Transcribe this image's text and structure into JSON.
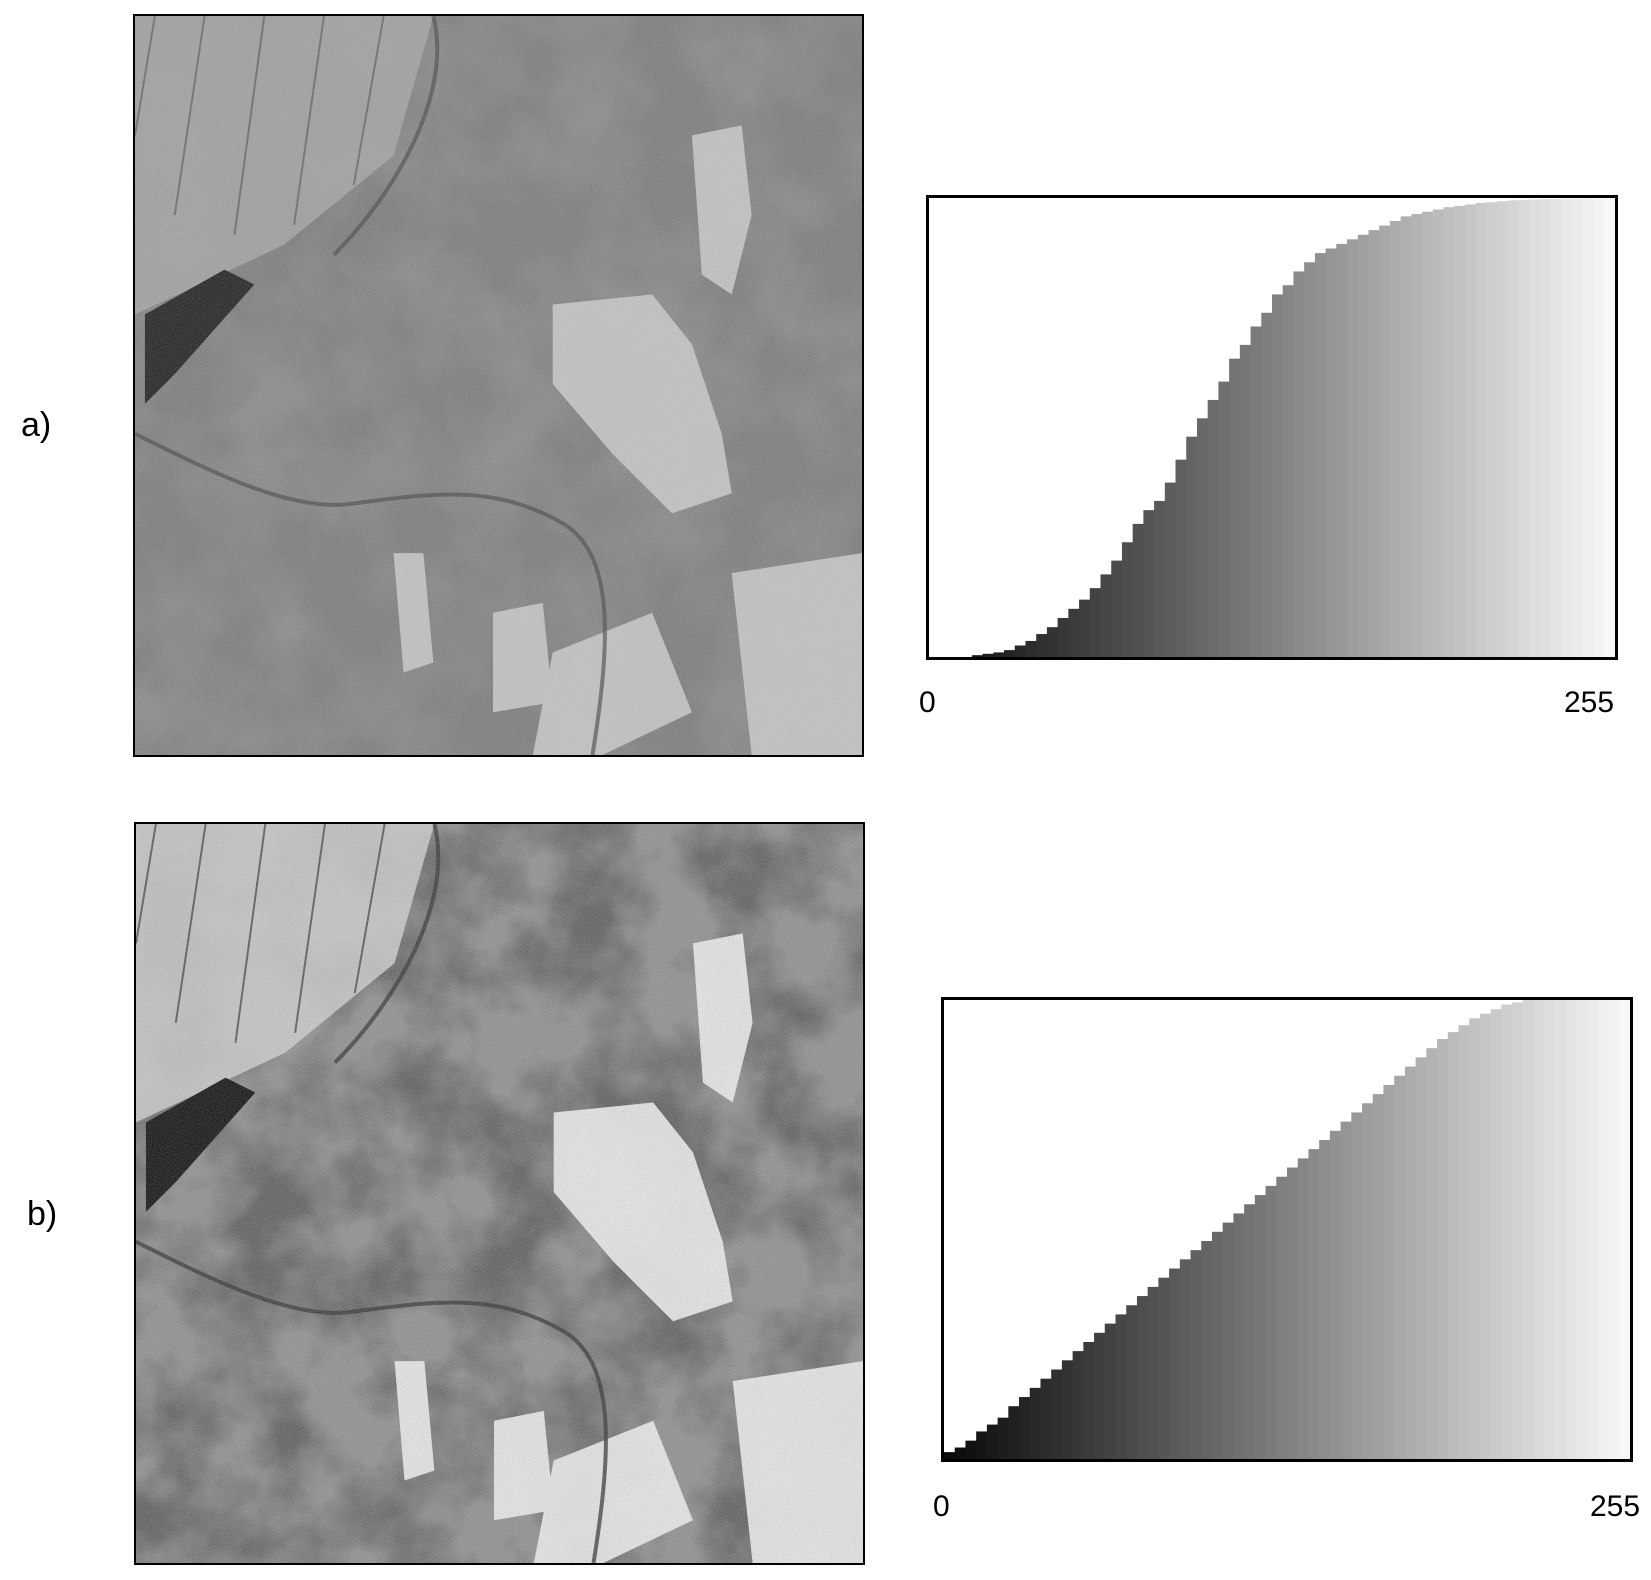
{
  "chart_data": [
    {
      "panel_label": "a)",
      "type": "bar",
      "xlim": [
        0,
        255
      ],
      "tick_labels": [
        "0",
        "255"
      ],
      "fill": "grayscale-gradient",
      "grid": false,
      "x": [
        0,
        4,
        8,
        12,
        16,
        20,
        24,
        28,
        32,
        36,
        40,
        44,
        48,
        52,
        56,
        60,
        64,
        68,
        72,
        76,
        80,
        84,
        88,
        92,
        96,
        100,
        104,
        108,
        112,
        116,
        120,
        124,
        128,
        132,
        136,
        140,
        144,
        148,
        152,
        156,
        160,
        164,
        168,
        172,
        176,
        180,
        184,
        188,
        192,
        196,
        200,
        204,
        208,
        212,
        216,
        220,
        224,
        228,
        232,
        236,
        240,
        244,
        248,
        252
      ],
      "values": [
        0,
        0,
        0,
        0,
        0.4,
        0.7,
        1,
        1.5,
        2.5,
        3.5,
        5,
        6.5,
        8.5,
        10.5,
        12.5,
        15,
        18,
        21,
        25,
        29,
        32,
        34,
        38,
        43,
        48,
        52,
        56,
        60,
        65,
        68,
        72,
        75,
        79,
        81,
        84,
        86,
        88,
        89,
        90,
        91,
        92,
        93,
        94,
        95,
        96,
        96.5,
        97,
        97.5,
        98,
        98.3,
        98.6,
        98.9,
        99.1,
        99.3,
        99.5,
        99.6,
        99.7,
        99.8,
        99.8,
        99.9,
        99.9,
        100,
        100,
        100
      ]
    },
    {
      "panel_label": "b)",
      "type": "bar",
      "xlim": [
        0,
        255
      ],
      "tick_labels": [
        "0",
        "255"
      ],
      "fill": "grayscale-gradient",
      "grid": false,
      "x": [
        0,
        4,
        8,
        12,
        16,
        20,
        24,
        28,
        32,
        36,
        40,
        44,
        48,
        52,
        56,
        60,
        64,
        68,
        72,
        76,
        80,
        84,
        88,
        92,
        96,
        100,
        104,
        108,
        112,
        116,
        120,
        124,
        128,
        132,
        136,
        140,
        144,
        148,
        152,
        156,
        160,
        164,
        168,
        172,
        176,
        180,
        184,
        188,
        192,
        196,
        200,
        204,
        208,
        212,
        216,
        220,
        224,
        228,
        232,
        236,
        240,
        244,
        248,
        252
      ],
      "values": [
        1.5,
        2.5,
        4,
        6,
        7.5,
        9,
        11.5,
        13.5,
        15.5,
        17.5,
        19.5,
        21.5,
        23.5,
        25.5,
        27.5,
        29.5,
        31.5,
        33.5,
        35.5,
        37.5,
        39.5,
        41.5,
        43.5,
        45.5,
        47.5,
        49.5,
        51.5,
        53.5,
        55.5,
        57.5,
        59.5,
        61.5,
        63.5,
        65.5,
        67.5,
        69.5,
        71.5,
        73.5,
        75.5,
        77.5,
        79.5,
        81.5,
        83.5,
        85.5,
        87.5,
        89.5,
        91.5,
        93,
        94.5,
        96,
        97,
        98,
        99,
        99.5,
        100,
        100,
        100,
        100,
        100,
        100,
        100,
        100,
        100,
        100
      ]
    }
  ],
  "aerial_photos": [
    {
      "panel": "a)",
      "contrast": "original"
    },
    {
      "panel": "b)",
      "contrast": "equalized"
    }
  ]
}
